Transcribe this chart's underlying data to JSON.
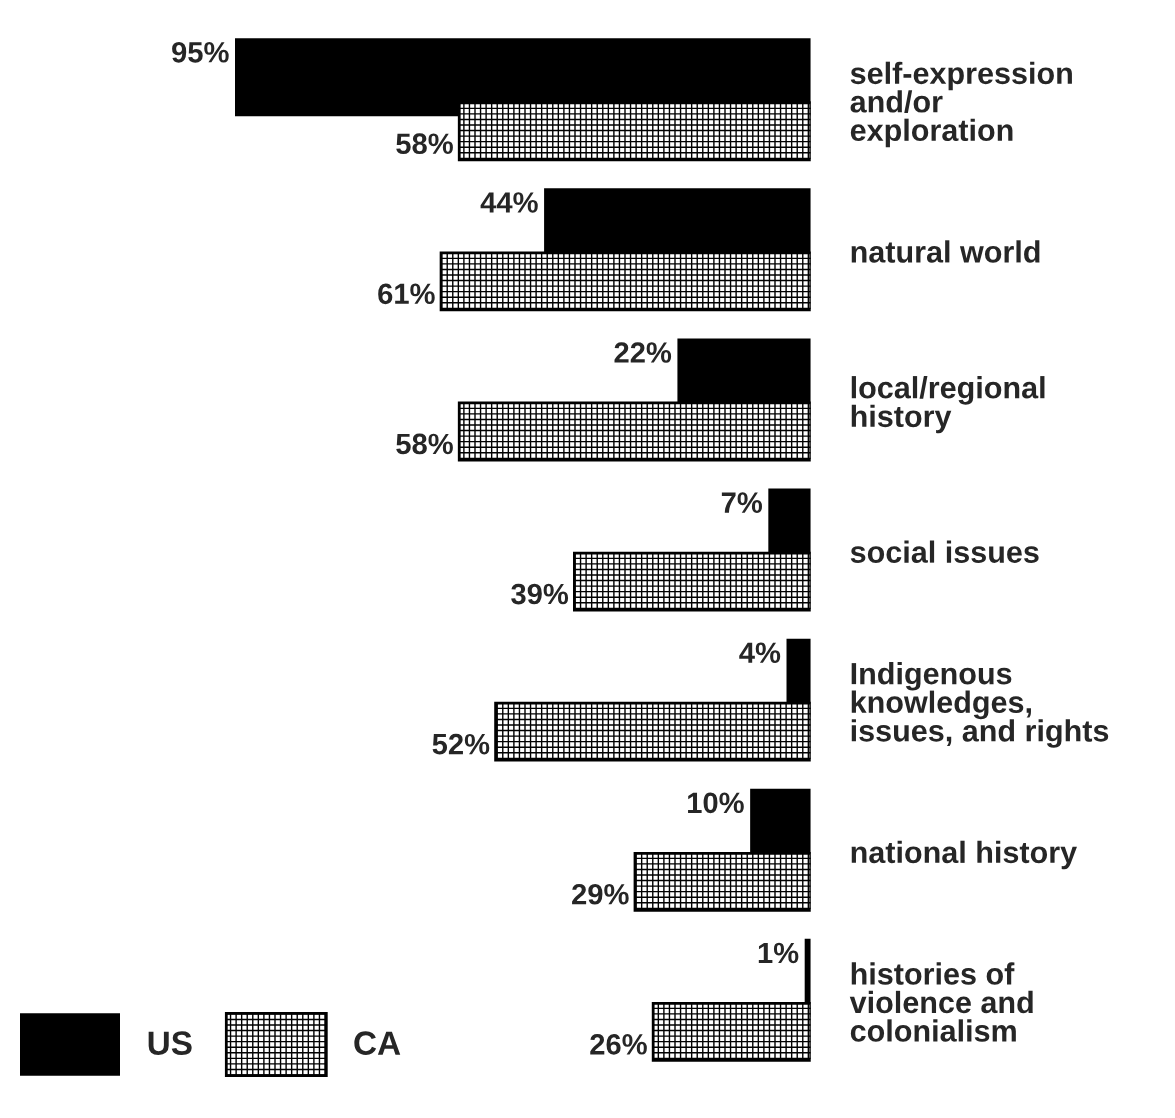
{
  "chart_data": {
    "type": "bar",
    "orientation": "horizontal",
    "categories": [
      "self-expression\nand/or\nexploration",
      "natural world",
      "local/regional\nhistory",
      "social issues",
      "Indigenous\nknowledges,\nissues, and rights",
      "national history",
      "histories of\nviolence and\ncolonialism"
    ],
    "series": [
      {
        "name": "US",
        "color": "#000000",
        "values": [
          95,
          44,
          22,
          7,
          4,
          10,
          1
        ],
        "value_labels": [
          "95%",
          "44%",
          "22%",
          "7%",
          "4%",
          "10%",
          "1%"
        ]
      },
      {
        "name": "CA",
        "color": "#000000",
        "values": [
          58,
          61,
          58,
          39,
          52,
          29,
          26
        ],
        "value_labels": [
          "58%",
          "61%",
          "58%",
          "39%",
          "52%",
          "29%",
          "26%"
        ]
      }
    ],
    "legend": "bottom left",
    "tick_labels": "y",
    "grid": false
  }
}
